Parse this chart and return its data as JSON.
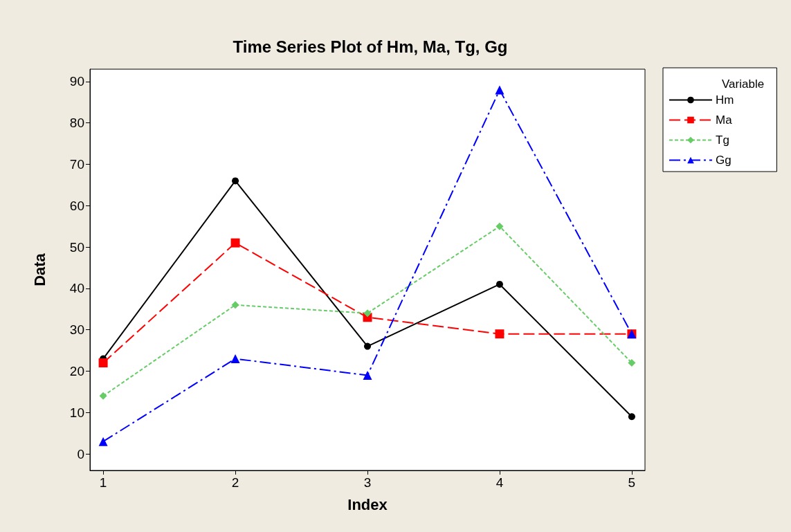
{
  "chart_data": {
    "type": "line",
    "title": "Time Series Plot of Hm, Ma, Tg, Gg",
    "xlabel": "Index",
    "ylabel": "Data",
    "legend_title": "Variable",
    "legend": "right",
    "grid": false,
    "x": [
      1,
      2,
      3,
      4,
      5
    ],
    "xlim": [
      0.9,
      5.1
    ],
    "xticks": [
      1,
      2,
      3,
      4,
      5
    ],
    "ylim": [
      -4,
      93
    ],
    "yticks": [
      0,
      10,
      20,
      30,
      40,
      50,
      60,
      70,
      80,
      90
    ],
    "series": [
      {
        "name": "Hm",
        "color": "#000000",
        "marker": "circle",
        "line_style": "solid",
        "values": [
          23,
          66,
          26,
          41,
          9
        ]
      },
      {
        "name": "Ma",
        "color": "#ff0000",
        "marker": "square",
        "line_style": "dashed",
        "values": [
          22,
          51,
          33,
          29,
          29
        ]
      },
      {
        "name": "Tg",
        "color": "#66cc66",
        "marker": "diamond",
        "line_style": "dotted",
        "values": [
          14,
          36,
          34,
          55,
          22
        ]
      },
      {
        "name": "Gg",
        "color": "#0000ff",
        "marker": "triangle",
        "line_style": "dashdot",
        "values": [
          3,
          23,
          19,
          88,
          29
        ]
      }
    ]
  }
}
